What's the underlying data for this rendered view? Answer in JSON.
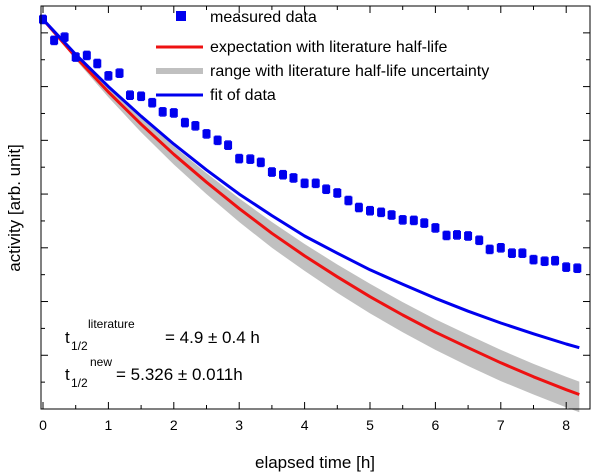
{
  "chart_data": {
    "type": "scatter",
    "title": "",
    "xlabel": "elapsed time [h]",
    "ylabel": "activity [arb. unit]",
    "xlim": [
      0,
      8.5
    ],
    "ylim": [
      0.3,
      1.05
    ],
    "x_ticks": [
      0,
      1,
      2,
      3,
      4,
      5,
      6,
      7,
      8
    ],
    "y_tick_labels_shown": false,
    "legend_position": "top-center",
    "series": [
      {
        "name": "measured data",
        "kind": "markers",
        "color": "#0000ee",
        "x": [
          0.0,
          0.17,
          0.33,
          0.5,
          0.67,
          0.83,
          1.0,
          1.17,
          1.33,
          1.5,
          1.67,
          1.83,
          2.0,
          2.17,
          2.33,
          2.5,
          2.67,
          2.83,
          3.0,
          3.17,
          3.33,
          3.5,
          3.67,
          3.83,
          4.0,
          4.17,
          4.33,
          4.5,
          4.67,
          4.83,
          5.0,
          5.17,
          5.33,
          5.5,
          5.67,
          5.83,
          6.0,
          6.17,
          6.33,
          6.5,
          6.67,
          6.83,
          7.0,
          7.17,
          7.33,
          7.5,
          7.67,
          7.83,
          8.0,
          8.17
        ],
        "y": [
          1.025,
          0.986,
          0.992,
          0.955,
          0.958,
          0.943,
          0.92,
          0.925,
          0.884,
          0.882,
          0.87,
          0.853,
          0.851,
          0.833,
          0.827,
          0.812,
          0.8,
          0.791,
          0.766,
          0.765,
          0.759,
          0.741,
          0.736,
          0.73,
          0.72,
          0.72,
          0.709,
          0.702,
          0.688,
          0.675,
          0.669,
          0.666,
          0.661,
          0.652,
          0.651,
          0.646,
          0.637,
          0.623,
          0.624,
          0.622,
          0.614,
          0.597,
          0.6,
          0.59,
          0.59,
          0.578,
          0.575,
          0.576,
          0.564,
          0.562
        ],
        "error": 0.008
      },
      {
        "name": "expectation with literature half-life",
        "kind": "curve",
        "color": "#ee1111",
        "x": [
          0.0,
          0.5,
          1.0,
          1.5,
          2.0,
          2.5,
          3.0,
          3.5,
          4.0,
          4.5,
          5.0,
          5.5,
          6.0,
          6.5,
          7.0,
          7.5,
          8.0,
          8.2
        ],
        "y": [
          1.025,
          0.955,
          0.89,
          0.83,
          0.774,
          0.722,
          0.673,
          0.627,
          0.585,
          0.546,
          0.509,
          0.475,
          0.443,
          0.414,
          0.386,
          0.36,
          0.336,
          0.327
        ]
      },
      {
        "name": "range with literature half-life uncertainty",
        "kind": "band",
        "color": "#c0c0c0",
        "x": [
          0.0,
          0.5,
          1.0,
          1.5,
          2.0,
          2.5,
          3.0,
          3.5,
          4.0,
          4.5,
          5.0,
          5.5,
          6.0,
          6.5,
          7.0,
          7.5,
          8.0,
          8.2
        ],
        "y_lower": [
          1.025,
          0.95,
          0.88,
          0.815,
          0.755,
          0.7,
          0.648,
          0.6,
          0.557,
          0.516,
          0.478,
          0.443,
          0.41,
          0.38,
          0.352,
          0.327,
          0.303,
          0.294
        ],
        "y_upper": [
          1.025,
          0.96,
          0.899,
          0.842,
          0.789,
          0.739,
          0.692,
          0.648,
          0.607,
          0.569,
          0.533,
          0.499,
          0.467,
          0.438,
          0.41,
          0.384,
          0.36,
          0.351
        ]
      },
      {
        "name": "fit of data",
        "kind": "curve",
        "color": "#0000ee",
        "x": [
          0.0,
          0.5,
          1.0,
          1.5,
          2.0,
          2.5,
          3.0,
          3.5,
          4.0,
          4.5,
          5.0,
          5.5,
          6.0,
          6.5,
          7.0,
          7.5,
          8.0,
          8.2
        ],
        "y": [
          1.025,
          0.96,
          0.9,
          0.845,
          0.793,
          0.745,
          0.7,
          0.66,
          0.622,
          0.59,
          0.559,
          0.532,
          0.506,
          0.482,
          0.46,
          0.44,
          0.421,
          0.414
        ]
      }
    ],
    "annotations": {
      "lit_base": "t",
      "lit_sub": "1/2",
      "lit_sup": "literature",
      "lit_value": "= 4.9 ± 0.4 h",
      "new_base": "t",
      "new_sub": "1/2",
      "new_sup": "new",
      "new_value": "= 5.326 ± 0.011h"
    }
  }
}
